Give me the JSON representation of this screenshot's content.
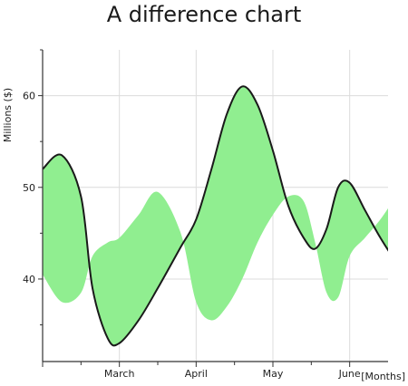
{
  "chart_data": {
    "type": "area",
    "title": "A difference chart",
    "ylabel": "Millions ($)",
    "xlabel": "[Months]",
    "xlim": [
      0,
      4.5
    ],
    "ylim": [
      31,
      65
    ],
    "yticks": [
      40,
      50,
      60
    ],
    "x_tick_positions": [
      1,
      2,
      3,
      4
    ],
    "x_tick_labels": [
      "March",
      "April",
      "May",
      "June"
    ],
    "grid": true,
    "fill_color": "#90ee90",
    "line_color": "#1a1a1a",
    "series": [
      {
        "values": [
          [
            0.0,
            52.0
          ],
          [
            0.25,
            53.5
          ],
          [
            0.5,
            49.0
          ],
          [
            0.65,
            39.0
          ],
          [
            0.85,
            33.5
          ],
          [
            1.0,
            33.0
          ],
          [
            1.25,
            35.5
          ],
          [
            1.5,
            39.0
          ],
          [
            1.8,
            43.5
          ],
          [
            2.0,
            46.5
          ],
          [
            2.2,
            52.0
          ],
          [
            2.4,
            58.0
          ],
          [
            2.6,
            61.0
          ],
          [
            2.8,
            59.0
          ],
          [
            3.0,
            54.0
          ],
          [
            3.2,
            48.0
          ],
          [
            3.4,
            44.5
          ],
          [
            3.55,
            43.3
          ],
          [
            3.7,
            45.5
          ],
          [
            3.85,
            50.0
          ],
          [
            4.0,
            50.5
          ],
          [
            4.2,
            47.5
          ],
          [
            4.4,
            44.5
          ],
          [
            4.6,
            42.0
          ],
          [
            4.8,
            40.5
          ],
          [
            5.0,
            39.0
          ]
        ]
      },
      {
        "values": [
          [
            0.0,
            40.5
          ],
          [
            0.25,
            37.5
          ],
          [
            0.5,
            38.5
          ],
          [
            0.65,
            42.5
          ],
          [
            0.85,
            44.0
          ],
          [
            1.0,
            44.5
          ],
          [
            1.25,
            47.0
          ],
          [
            1.5,
            49.5
          ],
          [
            1.8,
            45.0
          ],
          [
            2.0,
            37.5
          ],
          [
            2.2,
            35.5
          ],
          [
            2.4,
            37.0
          ],
          [
            2.6,
            40.0
          ],
          [
            2.8,
            44.0
          ],
          [
            3.0,
            47.0
          ],
          [
            3.2,
            49.0
          ],
          [
            3.4,
            48.5
          ],
          [
            3.55,
            44.0
          ],
          [
            3.7,
            38.5
          ],
          [
            3.85,
            38.0
          ],
          [
            4.0,
            42.5
          ],
          [
            4.2,
            44.5
          ],
          [
            4.4,
            46.5
          ],
          [
            4.6,
            49.0
          ],
          [
            4.8,
            51.5
          ],
          [
            5.0,
            52.0
          ]
        ]
      }
    ]
  }
}
